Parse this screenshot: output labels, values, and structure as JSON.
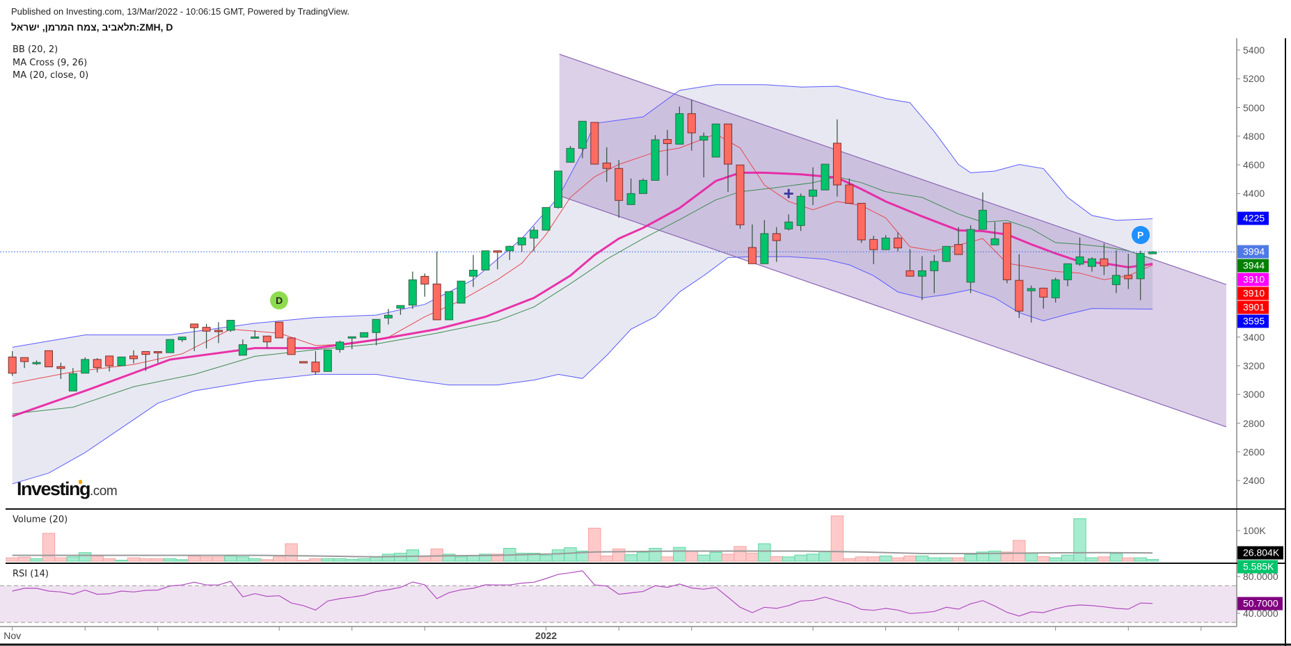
{
  "header": {
    "published": "Published on Investing.com, 13/Mar/2022 - 10:06:15 GMT, Powered by TradingView.",
    "symbol": "תלאביב ,צמח המרמן, ישראל:ZMH, D"
  },
  "legend": [
    "BB (20, 2)",
    "MA Cross (9, 26)",
    "MA (20, close, 0)"
  ],
  "logo": {
    "main": "Investing",
    "suffix": ".com"
  },
  "panes": {
    "volume_label": "Volume (20)",
    "rsi_label": "RSI (14)"
  },
  "colors": {
    "up": "#00c46b",
    "down": "#ff6b61",
    "wick": "#2f4f3a",
    "bb_line": "#5a5aff",
    "bb_fill": "#e4e4f0",
    "ma20": "#e91ea0",
    "ma9": "#e8494d",
    "ma26": "#3d8b4f",
    "channel": "#8a64b4",
    "rsi_line": "#b04cc0",
    "rsi_band": "#f0e3f1"
  },
  "chart_data": {
    "type": "candlestick",
    "title": "ZMH, D",
    "ylim": [
      2200,
      5500
    ],
    "price_ticks": [
      5400,
      5200,
      5000,
      4800,
      4600,
      4400,
      3400,
      3200,
      3000,
      2800,
      2600,
      2400
    ],
    "x_ticks": [
      {
        "index": 0,
        "label": "Nov"
      },
      {
        "index": 6,
        "label": ""
      },
      {
        "index": 12,
        "label": ""
      },
      {
        "index": 22,
        "label": ""
      },
      {
        "index": 28,
        "label": ""
      },
      {
        "index": 34,
        "label": ""
      },
      {
        "index": 44,
        "label": "2022"
      },
      {
        "index": 50,
        "label": ""
      },
      {
        "index": 56,
        "label": ""
      },
      {
        "index": 66,
        "label": ""
      },
      {
        "index": 72,
        "label": ""
      },
      {
        "index": 78,
        "label": ""
      },
      {
        "index": 86,
        "label": ""
      },
      {
        "index": 92,
        "label": ""
      },
      {
        "index": 98,
        "label": ""
      }
    ],
    "open": [
      3261,
      3257,
      3221,
      3305,
      3194,
      3024,
      3148,
      3244,
      3268,
      3200,
      3268,
      3299,
      3299,
      3291,
      3381,
      3491,
      3468,
      3447,
      3447,
      3273,
      3394,
      3407,
      3504,
      3394,
      3229,
      3226,
      3160,
      3313,
      3400,
      3399,
      3431,
      3533,
      3601,
      3622,
      3823,
      3770,
      3520,
      3636,
      3824,
      3867,
      4001,
      4001,
      4042,
      4090,
      4145,
      4303,
      4618,
      4715,
      4896,
      4613,
      4575,
      4323,
      4400,
      4492,
      4777,
      4744,
      4957,
      4772,
      4654,
      4885,
      4599,
      4024,
      3911,
      4121,
      4153,
      4177,
      4381,
      4425,
      4751,
      4460,
      4332,
      4080,
      4009,
      4090,
      3862,
      3824,
      3862,
      3927,
      4045,
      3782,
      4150,
      4042,
      4194,
      3795,
      3722,
      3741,
      3673,
      3799,
      3908,
      3892,
      3945,
      3765,
      3830,
      3806,
      3980
    ],
    "high": [
      3302,
      3257,
      3237,
      3305,
      3221,
      3184,
      3258,
      3253,
      3268,
      3261,
      3307,
      3299,
      3299,
      3383,
      3400,
      3491,
      3492,
      3504,
      3517,
      3383,
      3447,
      3407,
      3504,
      3394,
      3232,
      3302,
      3310,
      3375,
      3402,
      3431,
      3523,
      3596,
      3620,
      3856,
      3843,
      3996,
      3717,
      3790,
      3972,
      4001,
      4001,
      4037,
      4092,
      4171,
      4303,
      4557,
      4731,
      4904,
      4896,
      4723,
      4634,
      4505,
      4505,
      4807,
      4844,
      5006,
      5054,
      4825,
      4885,
      4885,
      4599,
      4185,
      4215,
      4166,
      4255,
      4400,
      4583,
      4605,
      4917,
      4505,
      4332,
      4105,
      4110,
      4131,
      4013,
      3964,
      3972,
      4032,
      4166,
      4179,
      4408,
      4202,
      4194,
      3977,
      3759,
      3741,
      3814,
      3911,
      4093,
      3956,
      4053,
      4005,
      3980,
      4001,
      3999
    ],
    "low": [
      3129,
      3184,
      3205,
      3192,
      3108,
      3024,
      3148,
      3153,
      3160,
      3200,
      3216,
      3164,
      3221,
      3291,
      3366,
      3302,
      3320,
      3358,
      3436,
      3273,
      3391,
      3323,
      3394,
      3278,
      3224,
      3137,
      3160,
      3291,
      3315,
      3399,
      3342,
      3488,
      3555,
      3597,
      3681,
      3520,
      3520,
      3636,
      3749,
      3867,
      3872,
      3937,
      3993,
      3997,
      4145,
      4295,
      4615,
      4646,
      4605,
      4481,
      4231,
      4323,
      4400,
      4492,
      4525,
      4744,
      4699,
      4513,
      4654,
      4412,
      4155,
      3911,
      3911,
      3924,
      4142,
      4139,
      4320,
      4425,
      4379,
      4332,
      4056,
      3908,
      4009,
      3997,
      3824,
      3657,
      3706,
      3922,
      3975,
      3706,
      4150,
      4042,
      3775,
      3533,
      3501,
      3598,
      3641,
      3754,
      3896,
      3856,
      3832,
      3706,
      3735,
      3657,
      3980
    ],
    "close": [
      3148,
      3229,
      3223,
      3192,
      3181,
      3145,
      3244,
      3187,
      3199,
      3261,
      3249,
      3279,
      3292,
      3383,
      3400,
      3465,
      3441,
      3441,
      3517,
      3347,
      3401,
      3366,
      3394,
      3278,
      3226,
      3157,
      3310,
      3365,
      3402,
      3431,
      3523,
      3552,
      3620,
      3799,
      3769,
      3520,
      3717,
      3790,
      3866,
      4001,
      3995,
      4032,
      4092,
      4145,
      4303,
      4557,
      4715,
      4904,
      4605,
      4575,
      4352,
      4400,
      4492,
      4775,
      4748,
      4957,
      4823,
      4799,
      4885,
      4605,
      4182,
      3911,
      4121,
      4072,
      4202,
      4381,
      4425,
      4605,
      4460,
      4332,
      4077,
      4009,
      4090,
      4021,
      3824,
      3862,
      3927,
      4032,
      3975,
      4150,
      4284,
      4085,
      3799,
      3581,
      3738,
      3678,
      3799,
      3911,
      3959,
      3945,
      3896,
      3830,
      3806,
      3983,
      3994
    ],
    "volume_k": [
      11,
      13,
      8,
      91,
      11,
      14,
      28,
      17,
      8,
      3,
      11,
      8,
      8,
      8,
      5,
      17,
      14,
      14,
      17,
      14,
      8,
      5,
      14,
      57,
      3,
      8,
      8,
      8,
      6,
      8,
      14,
      23,
      26,
      37,
      17,
      40,
      23,
      14,
      19,
      23,
      23,
      42,
      26,
      26,
      19,
      37,
      44,
      33,
      108,
      17,
      40,
      21,
      29,
      42,
      14,
      45,
      32,
      20,
      29,
      23,
      48,
      26,
      57,
      15,
      14,
      20,
      23,
      33,
      148,
      8,
      14,
      14,
      17,
      11,
      17,
      17,
      11,
      11,
      11,
      22,
      30,
      33,
      30,
      68,
      26,
      15,
      11,
      20,
      139,
      11,
      14,
      25,
      11,
      11,
      5.585
    ],
    "volume_ma_k": [
      [
        0,
        19
      ],
      [
        20,
        19
      ],
      [
        25,
        17
      ],
      [
        30,
        14
      ],
      [
        35,
        17
      ],
      [
        40,
        19
      ],
      [
        45,
        24
      ],
      [
        48,
        30
      ],
      [
        55,
        33
      ],
      [
        60,
        33
      ],
      [
        65,
        33
      ],
      [
        70,
        30
      ],
      [
        75,
        25
      ],
      [
        80,
        25
      ],
      [
        85,
        27
      ],
      [
        90,
        28
      ],
      [
        94,
        26.804
      ]
    ],
    "rsi": [
      64.2,
      67.2,
      67.2,
      64.2,
      63.2,
      60.7,
      65.2,
      60.7,
      61.2,
      64.2,
      63.2,
      64.9,
      65.2,
      69.7,
      70.8,
      73.8,
      70.8,
      70.8,
      74.8,
      57.9,
      61.4,
      58.4,
      59.1,
      51.1,
      48.3,
      43.5,
      53.3,
      55.9,
      57.6,
      59.6,
      63.7,
      65.7,
      68.2,
      74,
      71,
      55.9,
      62.4,
      65.5,
      67.2,
      71,
      70.8,
      70.8,
      72.8,
      73.8,
      77.8,
      82.4,
      84.1,
      86.2,
      70.8,
      69.7,
      60.7,
      62.2,
      63.7,
      70,
      68.2,
      71.8,
      67.5,
      66.2,
      68.2,
      57.4,
      46.5,
      40.7,
      46.5,
      45.3,
      48.3,
      53.3,
      54.1,
      57.6,
      53.6,
      50,
      44.2,
      43.2,
      45.3,
      43.5,
      39.7,
      40.5,
      42,
      46.5,
      44.5,
      50.3,
      53.8,
      47.8,
      41,
      36.9,
      41.5,
      40.7,
      44.7,
      47.8,
      49,
      48.3,
      47,
      45.3,
      44.5,
      51.1,
      50.7
    ],
    "rsi_levels": [
      70,
      30
    ],
    "rsi_ticks": [
      80,
      40
    ],
    "volume_ticks": [
      {
        "value": 100,
        "label": "100K"
      }
    ],
    "bb_upper": [
      [
        0,
        3329
      ],
      [
        6,
        3415
      ],
      [
        13,
        3415
      ],
      [
        20,
        3496
      ],
      [
        25,
        3536
      ],
      [
        30,
        3553
      ],
      [
        34,
        3628
      ],
      [
        38,
        3800
      ],
      [
        42,
        4086
      ],
      [
        45,
        4373
      ],
      [
        47,
        4689
      ],
      [
        48,
        4889
      ],
      [
        52,
        4935
      ],
      [
        55,
        5119
      ],
      [
        58,
        5159
      ],
      [
        62,
        5159
      ],
      [
        65,
        5142
      ],
      [
        68,
        5148
      ],
      [
        70,
        5107
      ],
      [
        72,
        5062
      ],
      [
        74,
        5033
      ],
      [
        76,
        4832
      ],
      [
        78,
        4603
      ],
      [
        79,
        4545
      ],
      [
        81,
        4557
      ],
      [
        83,
        4603
      ],
      [
        85,
        4574
      ],
      [
        87,
        4373
      ],
      [
        89,
        4247
      ],
      [
        91,
        4213
      ],
      [
        94,
        4225
      ]
    ],
    "bb_lower": [
      [
        0,
        2377
      ],
      [
        3,
        2452
      ],
      [
        6,
        2595
      ],
      [
        9,
        2767
      ],
      [
        12,
        2939
      ],
      [
        15,
        3025
      ],
      [
        20,
        3094
      ],
      [
        25,
        3140
      ],
      [
        30,
        3140
      ],
      [
        33,
        3100
      ],
      [
        36,
        3066
      ],
      [
        40,
        3066
      ],
      [
        43,
        3100
      ],
      [
        45,
        3140
      ],
      [
        47,
        3111
      ],
      [
        49,
        3272
      ],
      [
        51,
        3455
      ],
      [
        53,
        3541
      ],
      [
        55,
        3714
      ],
      [
        57,
        3828
      ],
      [
        59,
        3954
      ],
      [
        61,
        3960
      ],
      [
        64,
        3960
      ],
      [
        67,
        3943
      ],
      [
        69,
        3903
      ],
      [
        71,
        3828
      ],
      [
        73,
        3714
      ],
      [
        75,
        3673
      ],
      [
        77,
        3696
      ],
      [
        79,
        3731
      ],
      [
        81,
        3673
      ],
      [
        83,
        3570
      ],
      [
        85,
        3513
      ],
      [
        87,
        3559
      ],
      [
        89,
        3599
      ],
      [
        94,
        3595
      ]
    ],
    "ma20": [
      [
        0,
        2848
      ],
      [
        6,
        3025
      ],
      [
        13,
        3243
      ],
      [
        20,
        3323
      ],
      [
        25,
        3323
      ],
      [
        30,
        3381
      ],
      [
        35,
        3455
      ],
      [
        39,
        3541
      ],
      [
        43,
        3673
      ],
      [
        46,
        3828
      ],
      [
        48,
        3972
      ],
      [
        50,
        4086
      ],
      [
        52,
        4161
      ],
      [
        55,
        4299
      ],
      [
        58,
        4488
      ],
      [
        60,
        4545
      ],
      [
        62,
        4545
      ],
      [
        65,
        4534
      ],
      [
        68,
        4511
      ],
      [
        70,
        4431
      ],
      [
        72,
        4345
      ],
      [
        75,
        4241
      ],
      [
        78,
        4144
      ],
      [
        80,
        4138
      ],
      [
        82,
        4115
      ],
      [
        84,
        4046
      ],
      [
        86,
        3983
      ],
      [
        88,
        3926
      ],
      [
        90,
        3914
      ],
      [
        92,
        3886
      ],
      [
        94,
        3910
      ]
    ],
    "ma9": [
      [
        0,
        3077
      ],
      [
        5,
        3157
      ],
      [
        10,
        3209
      ],
      [
        14,
        3283
      ],
      [
        18,
        3455
      ],
      [
        22,
        3427
      ],
      [
        25,
        3341
      ],
      [
        28,
        3352
      ],
      [
        31,
        3398
      ],
      [
        34,
        3541
      ],
      [
        37,
        3656
      ],
      [
        40,
        3800
      ],
      [
        42,
        3914
      ],
      [
        44,
        4115
      ],
      [
        46,
        4373
      ],
      [
        48,
        4517
      ],
      [
        50,
        4603
      ],
      [
        53,
        4689
      ],
      [
        55,
        4717
      ],
      [
        58,
        4815
      ],
      [
        60,
        4717
      ],
      [
        62,
        4459
      ],
      [
        64,
        4345
      ],
      [
        66,
        4287
      ],
      [
        68,
        4345
      ],
      [
        70,
        4316
      ],
      [
        72,
        4230
      ],
      [
        74,
        4029
      ],
      [
        76,
        4001
      ],
      [
        78,
        4041
      ],
      [
        80,
        4086
      ],
      [
        82,
        3914
      ],
      [
        84,
        3886
      ],
      [
        86,
        3857
      ],
      [
        88,
        3846
      ],
      [
        90,
        3800
      ],
      [
        92,
        3828
      ],
      [
        94,
        3901
      ]
    ],
    "ma26": [
      [
        0,
        2865
      ],
      [
        5,
        2911
      ],
      [
        10,
        3054
      ],
      [
        15,
        3140
      ],
      [
        20,
        3266
      ],
      [
        25,
        3312
      ],
      [
        30,
        3352
      ],
      [
        35,
        3427
      ],
      [
        40,
        3513
      ],
      [
        43,
        3610
      ],
      [
        46,
        3771
      ],
      [
        49,
        3943
      ],
      [
        52,
        4086
      ],
      [
        55,
        4218
      ],
      [
        58,
        4356
      ],
      [
        60,
        4413
      ],
      [
        63,
        4442
      ],
      [
        66,
        4476
      ],
      [
        68,
        4517
      ],
      [
        70,
        4476
      ],
      [
        72,
        4413
      ],
      [
        75,
        4373
      ],
      [
        78,
        4258
      ],
      [
        80,
        4201
      ],
      [
        82,
        4212
      ],
      [
        84,
        4155
      ],
      [
        86,
        4058
      ],
      [
        88,
        4046
      ],
      [
        90,
        4029
      ],
      [
        92,
        4001
      ],
      [
        94,
        3944
      ]
    ],
    "channel": {
      "start_index": 45.1,
      "end_index": 100.1,
      "upper": [
        5371,
        3765
      ],
      "lower": [
        4385,
        2773
      ]
    },
    "markers": [
      {
        "type": "dividend",
        "label": "D",
        "index": 22,
        "price": 3656,
        "color": "#8ddc4f"
      },
      {
        "type": "position",
        "label": "P",
        "index": 93,
        "price": 4109,
        "color": "#1e90ff"
      },
      {
        "type": "cross",
        "label": "+",
        "index": 64,
        "price": 4402,
        "color": "#3b3b9a"
      }
    ],
    "last_price": 3994,
    "price_badges": [
      {
        "label": "4225",
        "value": 4225,
        "color": "#0000ff"
      },
      {
        "label": "3994",
        "value": 3994,
        "color": "#4f79e6"
      },
      {
        "label": "3944",
        "value": 3944,
        "color": "#008000"
      },
      {
        "label": "3910",
        "value": 3910,
        "color": "#ff00ff"
      },
      {
        "label": "3910",
        "value": 3910,
        "color": "#ff0000"
      },
      {
        "label": "3901",
        "value": 3901,
        "color": "#ff0000"
      },
      {
        "label": "3595",
        "value": 3595,
        "color": "#0000ff"
      }
    ],
    "volume_badges": [
      {
        "label": "26.804K",
        "value": 26.804,
        "color": "#000000"
      },
      {
        "label": "5.585K",
        "value": 5.585,
        "color": "#00c46b"
      }
    ],
    "rsi_badge": {
      "label": "50.7000",
      "value": 50.7,
      "color": "#800080"
    }
  }
}
